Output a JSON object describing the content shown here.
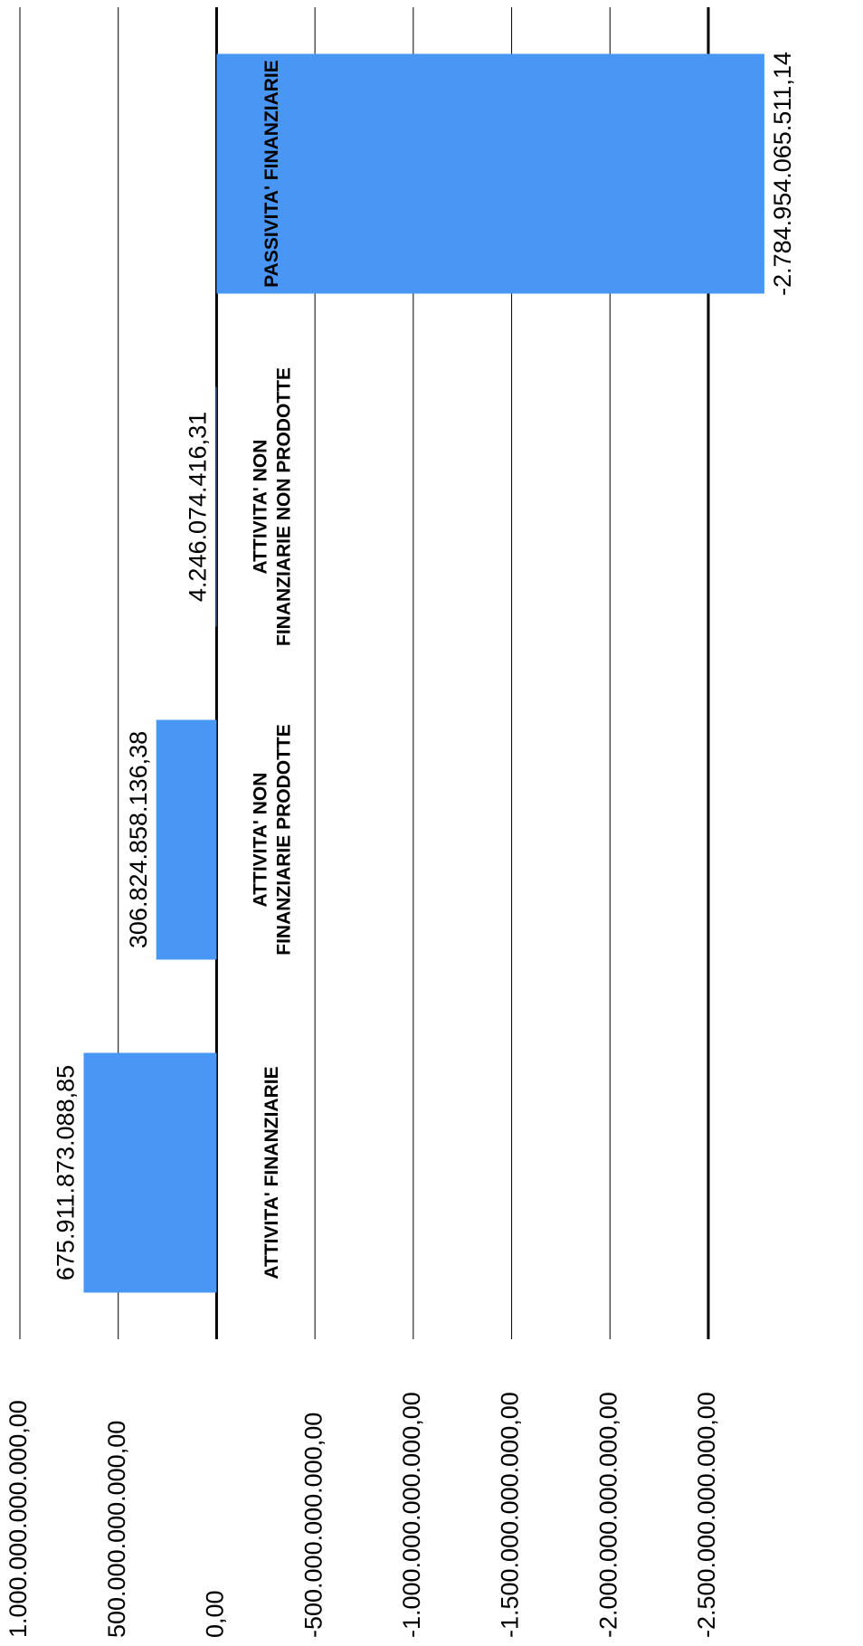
{
  "chart_data": {
    "type": "bar",
    "orientation": "horizontal",
    "categories": [
      "ATTIVITA' FINANZIARIE",
      "ATTIVITA' NON FINANZIARIE PRODOTTE",
      "ATTIVITA' NON FINANZIARIE NON PRODOTTE",
      "PASSIVITA' FINANZIARIE"
    ],
    "values": [
      675911873088.85,
      306824858136.38,
      4246074416.31,
      -2784954065511.14
    ],
    "value_labels": [
      "675.911.873.088,85",
      "306.824.858.136,38",
      "4.246.074.416,31",
      "-2.784.954.065.511,14"
    ],
    "color": "#4a96f5",
    "ylim": [
      -2500000000000,
      1000000000000
    ],
    "yticks": [
      {
        "value": 1000000000000,
        "label": "1.000.000.000.000,00"
      },
      {
        "value": 500000000000,
        "label": "500.000.000.000,00"
      },
      {
        "value": 0,
        "label": "0,00"
      },
      {
        "value": -500000000000,
        "label": "-500.000.000.000,00"
      },
      {
        "value": -1000000000000,
        "label": "-1.000.000.000.000,00"
      },
      {
        "value": -1500000000000,
        "label": "-1.500.000.000.000,00"
      },
      {
        "value": -2000000000000,
        "label": "-2.000.000.000.000,00"
      },
      {
        "value": -2500000000000,
        "label": "-2.500.000.000.000,00"
      }
    ],
    "grid": true
  }
}
